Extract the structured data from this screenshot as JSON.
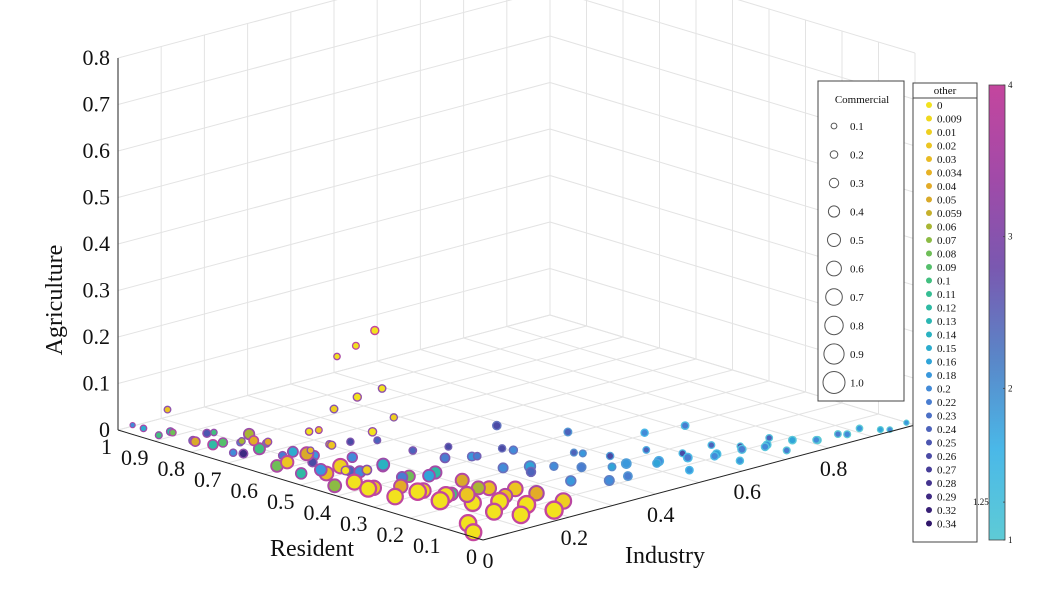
{
  "chart_data": {
    "type": "scatter",
    "title": "",
    "axes": {
      "x": {
        "label": "Industry",
        "ticks": [
          "0",
          "0.2",
          "0.4",
          "0.6",
          "0.8",
          "1"
        ],
        "lim": [
          0,
          1
        ]
      },
      "y": {
        "label": "Resident",
        "ticks": [
          "0",
          "0.1",
          "0.2",
          "0.3",
          "0.4",
          "0.5",
          "0.6",
          "0.7",
          "0.8",
          "0.9",
          "1"
        ],
        "lim": [
          0,
          1
        ]
      },
      "z": {
        "label": "Agriculture",
        "ticks": [
          "0",
          "0.1",
          "0.2",
          "0.3",
          "0.4",
          "0.5",
          "0.6",
          "0.7",
          "0.8"
        ],
        "lim": [
          0,
          0.8
        ]
      }
    },
    "grid": true,
    "size_legend": {
      "title": "Commercial",
      "entries": [
        "0.1",
        "0.2",
        "0.3",
        "0.4",
        "0.5",
        "0.6",
        "0.7",
        "0.8",
        "0.9",
        "1.0"
      ]
    },
    "color_legend": {
      "title": "other",
      "entries": [
        {
          "label": "0",
          "color": "#f2e21e"
        },
        {
          "label": "0.009",
          "color": "#f0d81e"
        },
        {
          "label": "0.01",
          "color": "#eecf20"
        },
        {
          "label": "0.02",
          "color": "#ecc522"
        },
        {
          "label": "0.03",
          "color": "#e9bb24"
        },
        {
          "label": "0.034",
          "color": "#e7b226"
        },
        {
          "label": "0.04",
          "color": "#e3ab28"
        },
        {
          "label": "0.05",
          "color": "#d9aa2a"
        },
        {
          "label": "0.059",
          "color": "#c6b02c"
        },
        {
          "label": "0.06",
          "color": "#a9b634"
        },
        {
          "label": "0.07",
          "color": "#8cbb44"
        },
        {
          "label": "0.08",
          "color": "#6fbe58"
        },
        {
          "label": "0.09",
          "color": "#55bf6c"
        },
        {
          "label": "0.1",
          "color": "#42bf80"
        },
        {
          "label": "0.11",
          "color": "#36bd93"
        },
        {
          "label": "0.12",
          "color": "#2fbaa4"
        },
        {
          "label": "0.13",
          "color": "#2bb6b3"
        },
        {
          "label": "0.14",
          "color": "#2ab2c1"
        },
        {
          "label": "0.15",
          "color": "#2cacce"
        },
        {
          "label": "0.16",
          "color": "#30a4d8"
        },
        {
          "label": "0.18",
          "color": "#3a98dc"
        },
        {
          "label": "0.2",
          "color": "#438bd8"
        },
        {
          "label": "0.22",
          "color": "#497dd0"
        },
        {
          "label": "0.23",
          "color": "#4c70c6"
        },
        {
          "label": "0.24",
          "color": "#4d63bb"
        },
        {
          "label": "0.25",
          "color": "#4c56b0"
        },
        {
          "label": "0.26",
          "color": "#4a4aa5"
        },
        {
          "label": "0.27",
          "color": "#473e99"
        },
        {
          "label": "0.28",
          "color": "#43338e"
        },
        {
          "label": "0.29",
          "color": "#3e2982"
        },
        {
          "label": "0.32",
          "color": "#371f76"
        },
        {
          "label": "0.34",
          "color": "#30166a"
        }
      ]
    },
    "colorbar": {
      "ticks": [
        "1",
        "1.25",
        "2",
        "3",
        "4"
      ],
      "lim": [
        1,
        4
      ],
      "colors": [
        "#5ecbd6",
        "#4ab8e8",
        "#5a86c8",
        "#7a58b0",
        "#a24aa8",
        "#c4469e"
      ]
    },
    "marker_edge_colors": {
      "magenta": "#c4469e",
      "purple": "#8a5ab6",
      "blue": "#3f8fd6",
      "cyan": "#5cc6cf"
    },
    "points": [
      [
        0.0,
        0.96,
        0.02,
        0.1,
        0.2,
        3.5
      ],
      [
        0.0,
        0.93,
        0.02,
        0.18,
        0.15,
        3.4
      ],
      [
        0.01,
        0.9,
        0.01,
        0.22,
        0.1,
        3.3
      ],
      [
        0.02,
        0.88,
        0.02,
        0.28,
        0.12,
        3.2
      ],
      [
        0.0,
        0.85,
        0.03,
        0.2,
        0.08,
        3.6
      ],
      [
        0.03,
        0.83,
        0.01,
        0.32,
        0.18,
        3.1
      ],
      [
        0.01,
        0.8,
        0.02,
        0.4,
        0.05,
        3.5
      ],
      [
        0.02,
        0.78,
        0.04,
        0.3,
        0.25,
        3.2
      ],
      [
        0.04,
        0.76,
        0.02,
        0.38,
        0.09,
        3.4
      ],
      [
        0.0,
        0.74,
        0.03,
        0.45,
        0.12,
        3.7
      ],
      [
        0.03,
        0.72,
        0.01,
        0.25,
        0.2,
        3.0
      ],
      [
        0.05,
        0.7,
        0.05,
        0.5,
        0.06,
        3.3
      ],
      [
        0.02,
        0.68,
        0.02,
        0.35,
        0.3,
        3.1
      ],
      [
        0.04,
        0.66,
        0.03,
        0.55,
        0.1,
        3.5
      ],
      [
        0.01,
        0.64,
        0.06,
        0.42,
        0.04,
        3.8
      ],
      [
        0.06,
        0.62,
        0.02,
        0.3,
        0.22,
        3.2
      ],
      [
        0.03,
        0.6,
        0.01,
        0.6,
        0.08,
        3.6
      ],
      [
        0.05,
        0.58,
        0.04,
        0.48,
        0.15,
        3.3
      ],
      [
        0.02,
        0.56,
        0.03,
        0.65,
        0.02,
        3.9
      ],
      [
        0.07,
        0.55,
        0.02,
        0.38,
        0.26,
        3.1
      ],
      [
        0.04,
        0.53,
        0.05,
        0.7,
        0.05,
        3.7
      ],
      [
        0.01,
        0.51,
        0.02,
        0.52,
        0.12,
        3.4
      ],
      [
        0.06,
        0.5,
        0.01,
        0.75,
        0.03,
        3.8
      ],
      [
        0.03,
        0.48,
        0.03,
        0.6,
        0.18,
        3.5
      ],
      [
        0.08,
        0.46,
        0.02,
        0.45,
        0.24,
        3.2
      ],
      [
        0.05,
        0.45,
        0.04,
        0.8,
        0.01,
        3.9
      ],
      [
        0.02,
        0.43,
        0.01,
        0.68,
        0.07,
        3.6
      ],
      [
        0.07,
        0.42,
        0.03,
        0.55,
        0.2,
        3.4
      ],
      [
        0.04,
        0.4,
        0.02,
        0.85,
        0.0,
        4.0
      ],
      [
        0.09,
        0.38,
        0.05,
        0.62,
        0.14,
        3.3
      ],
      [
        0.06,
        0.37,
        0.01,
        0.78,
        0.02,
        3.8
      ],
      [
        0.03,
        0.35,
        0.02,
        0.9,
        0.0,
        4.0
      ],
      [
        0.1,
        0.34,
        0.03,
        0.5,
        0.22,
        3.2
      ],
      [
        0.08,
        0.32,
        0.02,
        0.72,
        0.04,
        3.7
      ],
      [
        0.05,
        0.3,
        0.01,
        0.88,
        0.0,
        3.9
      ],
      [
        0.12,
        0.29,
        0.04,
        0.6,
        0.16,
        3.4
      ],
      [
        0.09,
        0.27,
        0.02,
        0.82,
        0.01,
        3.8
      ],
      [
        0.06,
        0.25,
        0.03,
        0.95,
        0.0,
        4.0
      ],
      [
        0.13,
        0.24,
        0.01,
        0.66,
        0.1,
        3.6
      ],
      [
        0.1,
        0.22,
        0.02,
        0.9,
        0.0,
        3.9
      ],
      [
        0.07,
        0.2,
        0.02,
        1.0,
        0.0,
        4.0
      ],
      [
        0.15,
        0.19,
        0.03,
        0.7,
        0.06,
        3.7
      ],
      [
        0.12,
        0.17,
        0.01,
        0.92,
        0.0,
        3.9
      ],
      [
        0.09,
        0.15,
        0.04,
        0.85,
        0.02,
        3.8
      ],
      [
        0.17,
        0.14,
        0.02,
        0.75,
        0.03,
        3.6
      ],
      [
        0.14,
        0.12,
        0.02,
        0.98,
        0.0,
        4.0
      ],
      [
        0.11,
        0.1,
        0.01,
        0.9,
        0.0,
        3.9
      ],
      [
        0.2,
        0.09,
        0.03,
        0.8,
        0.04,
        3.5
      ],
      [
        0.16,
        0.07,
        0.02,
        1.0,
        0.0,
        4.0
      ],
      [
        0.13,
        0.05,
        0.01,
        0.95,
        0.0,
        4.0
      ],
      [
        0.22,
        0.04,
        0.02,
        0.88,
        0.01,
        3.8
      ],
      [
        0.19,
        0.03,
        0.01,
        1.0,
        0.0,
        4.0
      ],
      [
        0.05,
        0.1,
        0.0,
        0.95,
        0.0,
        4.0
      ],
      [
        0.02,
        0.05,
        0.0,
        0.9,
        0.0,
        4.0
      ],
      [
        0.1,
        0.58,
        0.02,
        0.4,
        0.18,
        3.4
      ],
      [
        0.11,
        0.62,
        0.01,
        0.32,
        0.22,
        3.2
      ],
      [
        0.09,
        0.7,
        0.02,
        0.28,
        0.12,
        3.3
      ],
      [
        0.08,
        0.76,
        0.01,
        0.22,
        0.16,
        3.1
      ],
      [
        0.07,
        0.82,
        0.02,
        0.18,
        0.1,
        3.2
      ],
      [
        0.12,
        0.5,
        0.03,
        0.45,
        0.2,
        3.4
      ],
      [
        0.14,
        0.44,
        0.02,
        0.52,
        0.14,
        3.5
      ],
      [
        0.15,
        0.38,
        0.01,
        0.58,
        0.08,
        3.6
      ],
      [
        0.16,
        0.32,
        0.03,
        0.64,
        0.12,
        3.5
      ],
      [
        0.18,
        0.27,
        0.02,
        0.7,
        0.05,
        3.7
      ],
      [
        0.2,
        0.22,
        0.01,
        0.76,
        0.03,
        3.8
      ],
      [
        0.21,
        0.16,
        0.02,
        0.82,
        0.02,
        3.8
      ],
      [
        0.02,
        0.4,
        0.05,
        0.35,
        0.0,
        3.2
      ],
      [
        0.01,
        0.33,
        0.07,
        0.4,
        0.01,
        3.0
      ],
      [
        0.03,
        0.45,
        0.09,
        0.3,
        0.02,
        3.1
      ],
      [
        0.02,
        0.5,
        0.11,
        0.25,
        0.0,
        3.3
      ],
      [
        0.04,
        0.35,
        0.14,
        0.32,
        0.0,
        3.2
      ],
      [
        0.01,
        0.42,
        0.18,
        0.28,
        0.01,
        3.0
      ],
      [
        0.03,
        0.38,
        0.21,
        0.3,
        0.0,
        3.2
      ],
      [
        0.02,
        0.3,
        0.25,
        0.26,
        0.0,
        3.1
      ],
      [
        0.0,
        0.45,
        0.13,
        0.22,
        0.02,
        3.4
      ],
      [
        0.03,
        0.28,
        0.19,
        0.24,
        0.01,
        3.0
      ],
      [
        0.01,
        0.36,
        0.33,
        0.22,
        0.0,
        3.9
      ],
      [
        0.02,
        0.32,
        0.37,
        0.3,
        0.0,
        4.0
      ],
      [
        0.0,
        0.4,
        0.3,
        0.18,
        0.0,
        3.5
      ],
      [
        0.04,
        0.52,
        0.06,
        0.2,
        0.03,
        3.0
      ],
      [
        0.05,
        0.48,
        0.08,
        0.24,
        0.05,
        3.1
      ],
      [
        0.06,
        0.66,
        0.04,
        0.26,
        0.04,
        3.2
      ],
      [
        0.05,
        0.72,
        0.03,
        0.22,
        0.06,
        3.0
      ],
      [
        0.03,
        0.9,
        0.06,
        0.2,
        0.02,
        3.1
      ],
      [
        0.25,
        0.4,
        0.02,
        0.4,
        0.22,
        2.8
      ],
      [
        0.27,
        0.35,
        0.03,
        0.35,
        0.18,
        2.6
      ],
      [
        0.3,
        0.3,
        0.01,
        0.42,
        0.2,
        2.5
      ],
      [
        0.32,
        0.25,
        0.02,
        0.5,
        0.16,
        2.4
      ],
      [
        0.28,
        0.2,
        0.03,
        0.38,
        0.24,
        2.6
      ],
      [
        0.35,
        0.22,
        0.02,
        0.3,
        0.2,
        2.3
      ],
      [
        0.33,
        0.15,
        0.01,
        0.45,
        0.18,
        2.4
      ],
      [
        0.38,
        0.18,
        0.02,
        0.36,
        0.22,
        2.2
      ],
      [
        0.4,
        0.12,
        0.03,
        0.28,
        0.16,
        2.1
      ],
      [
        0.36,
        0.08,
        0.02,
        0.42,
        0.2,
        2.3
      ],
      [
        0.42,
        0.1,
        0.01,
        0.34,
        0.22,
        2.0
      ],
      [
        0.45,
        0.14,
        0.02,
        0.4,
        0.18,
        1.9
      ],
      [
        0.47,
        0.08,
        0.03,
        0.3,
        0.16,
        1.8
      ],
      [
        0.5,
        0.11,
        0.02,
        0.38,
        0.2,
        1.7
      ],
      [
        0.52,
        0.05,
        0.01,
        0.26,
        0.18,
        1.6
      ],
      [
        0.55,
        0.09,
        0.02,
        0.34,
        0.22,
        1.5
      ],
      [
        0.57,
        0.04,
        0.03,
        0.28,
        0.2,
        1.5
      ],
      [
        0.6,
        0.07,
        0.02,
        0.32,
        0.16,
        1.4
      ],
      [
        0.62,
        0.03,
        0.01,
        0.24,
        0.18,
        1.3
      ],
      [
        0.65,
        0.06,
        0.02,
        0.3,
        0.22,
        1.3
      ],
      [
        0.67,
        0.02,
        0.03,
        0.26,
        0.2,
        1.2
      ],
      [
        0.7,
        0.05,
        0.02,
        0.28,
        0.18,
        1.2
      ],
      [
        0.72,
        0.02,
        0.01,
        0.22,
        0.22,
        1.1
      ],
      [
        0.75,
        0.04,
        0.02,
        0.26,
        0.16,
        1.1
      ],
      [
        0.78,
        0.01,
        0.02,
        0.22,
        0.2,
        1.1
      ],
      [
        0.8,
        0.03,
        0.01,
        0.24,
        0.18,
        1.0
      ],
      [
        0.83,
        0.01,
        0.02,
        0.2,
        0.22,
        1.0
      ],
      [
        0.86,
        0.02,
        0.01,
        0.22,
        0.2,
        1.0
      ],
      [
        0.88,
        0.01,
        0.02,
        0.18,
        0.18,
        1.0
      ],
      [
        0.92,
        0.0,
        0.01,
        0.16,
        0.16,
        1.0
      ],
      [
        0.95,
        0.01,
        0.0,
        0.12,
        0.2,
        1.0
      ],
      [
        0.98,
        0.0,
        0.01,
        0.1,
        0.18,
        1.0
      ],
      [
        0.3,
        0.45,
        0.02,
        0.22,
        0.26,
        2.7
      ],
      [
        0.26,
        0.5,
        0.01,
        0.26,
        0.24,
        2.9
      ],
      [
        0.34,
        0.35,
        0.03,
        0.24,
        0.26,
        2.5
      ],
      [
        0.43,
        0.26,
        0.02,
        0.22,
        0.24,
        2.1
      ],
      [
        0.48,
        0.22,
        0.01,
        0.24,
        0.26,
        1.9
      ],
      [
        0.53,
        0.18,
        0.02,
        0.2,
        0.24,
        1.7
      ],
      [
        0.58,
        0.14,
        0.01,
        0.22,
        0.26,
        1.5
      ],
      [
        0.63,
        0.12,
        0.02,
        0.2,
        0.24,
        1.4
      ],
      [
        0.68,
        0.1,
        0.01,
        0.18,
        0.26,
        1.3
      ],
      [
        0.73,
        0.08,
        0.02,
        0.2,
        0.24,
        1.2
      ],
      [
        0.29,
        0.26,
        0.06,
        0.3,
        0.2,
        2.5
      ],
      [
        0.24,
        0.3,
        0.05,
        0.26,
        0.22,
        2.7
      ],
      [
        0.4,
        0.2,
        0.04,
        0.22,
        0.18,
        2.2
      ],
      [
        0.45,
        0.3,
        0.05,
        0.28,
        0.24,
        2.0
      ],
      [
        0.37,
        0.4,
        0.06,
        0.32,
        0.26,
        2.4
      ],
      [
        0.56,
        0.22,
        0.04,
        0.24,
        0.2,
        1.6
      ],
      [
        0.62,
        0.18,
        0.05,
        0.26,
        0.22,
        1.4
      ],
      [
        0.2,
        0.6,
        0.02,
        0.24,
        0.26,
        2.9
      ],
      [
        0.22,
        0.55,
        0.03,
        0.22,
        0.24,
        2.8
      ]
    ]
  }
}
